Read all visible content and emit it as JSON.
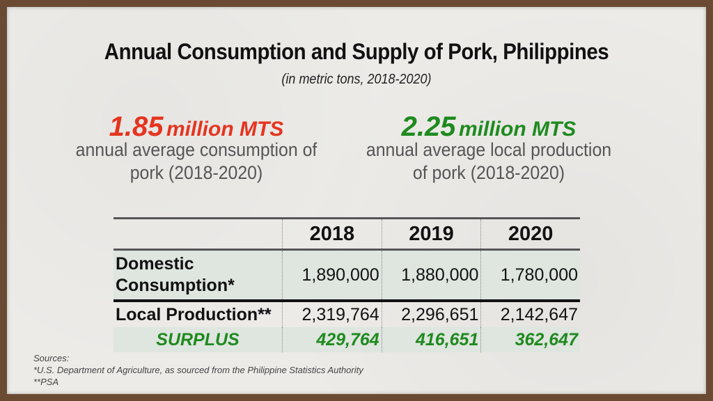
{
  "title": "Annual Consumption and Supply of Pork, Philippines",
  "subtitle": "(in metric tons, 2018-2020)",
  "stats": [
    {
      "value": "1.85",
      "unit": "million MTS",
      "line1": "annual average consumption of",
      "line2": "pork (2018-2020)",
      "color": "#e5341f"
    },
    {
      "value": "2.25",
      "unit": "million MTS",
      "line1": "annual average local production",
      "line2": "of pork (2018-2020)",
      "color": "#1e8a1e"
    }
  ],
  "table": {
    "years": [
      "2018",
      "2019",
      "2020"
    ],
    "rows": [
      {
        "label_line1": "Domestic",
        "label_line2": "Consumption*",
        "values": [
          "1,890,000",
          "1,880,000",
          "1,780,000"
        ]
      },
      {
        "label": "Local Production**",
        "values": [
          "2,319,764",
          "2,296,651",
          "2,142,647"
        ]
      },
      {
        "label": "SURPLUS",
        "values": [
          "429,764",
          "416,651",
          "362,647"
        ]
      }
    ]
  },
  "sources": {
    "heading": "Sources:",
    "line1": "*U.S. Department of Agriculture, as sourced from the Philippine Statistics Authority",
    "line2": "**PSA"
  }
}
